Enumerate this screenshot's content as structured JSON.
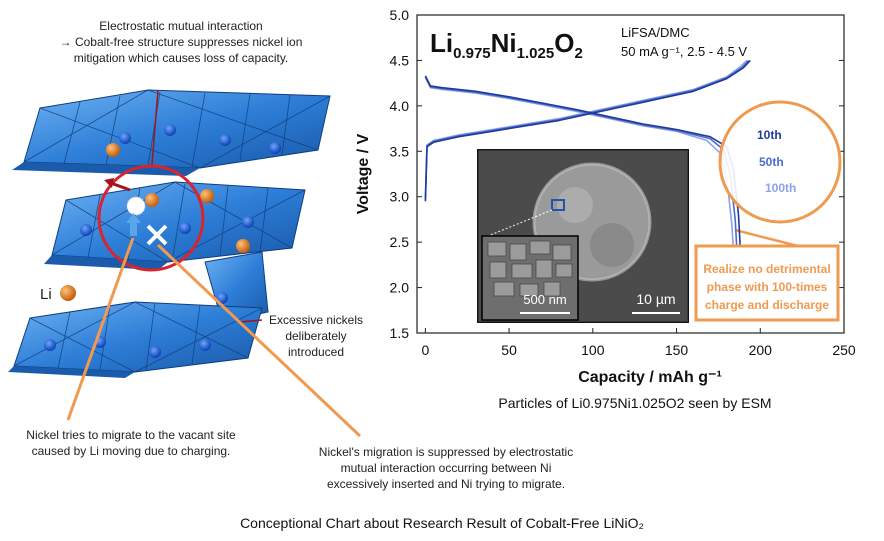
{
  "diagram": {
    "top_annotation": {
      "line1": "Electrostatic mutual interaction",
      "line2": "→ Cobalt-free structure suppresses nickel ion",
      "line3": "mitigation which causes loss of capacity."
    },
    "li_label": "Li",
    "excess_note": {
      "line1": "Excessive nickels",
      "line2": "deliberately",
      "line3": "introduced"
    },
    "migrate_note": {
      "line1": "Nickel tries to migrate to the vacant site",
      "line2": "caused by Li moving due to charging."
    },
    "suppress_note": {
      "line1": "Nickel's migration is suppressed by electrostatic",
      "line2": "mutual interaction occurring between Ni",
      "line3": "excessively inserted and Ni trying to migrate."
    },
    "colors": {
      "octahedra": "#2e7fd8",
      "li_atom": "#e07a1a",
      "red_circle": "#d9232e",
      "orange_line": "#f09a50"
    }
  },
  "chart_data": {
    "type": "line",
    "title_formula": {
      "a": "Li",
      "b": "0.975",
      "c": "Ni",
      "d": "1.025",
      "e": "O",
      "f": "2"
    },
    "conditions_line1": "LiFSA/DMC",
    "conditions_line2": "50 mA g⁻¹, 2.5 - 4.5 V",
    "xlabel": "Capacity   /   mAh g⁻¹",
    "ylabel": "Voltage   /   V",
    "xlim": [
      -5,
      250
    ],
    "ylim": [
      1.5,
      5.0
    ],
    "x_ticks": [
      "0",
      "50",
      "100",
      "150",
      "200",
      "250"
    ],
    "y_ticks": [
      "1.5",
      "2.0",
      "2.5",
      "3.0",
      "3.5",
      "4.0",
      "4.5",
      "5.0"
    ],
    "cycle_labels": [
      {
        "text": "10th",
        "color": "#1f3a9c"
      },
      {
        "text": "50th",
        "color": "#4d6bd0"
      },
      {
        "text": "100th",
        "color": "#8da3e6"
      }
    ],
    "series": [
      {
        "name": "10th",
        "color": "#1f3a9c",
        "charge": [
          [
            0,
            2.95
          ],
          [
            1,
            3.55
          ],
          [
            5,
            3.6
          ],
          [
            20,
            3.66
          ],
          [
            40,
            3.72
          ],
          [
            60,
            3.78
          ],
          [
            80,
            3.84
          ],
          [
            100,
            3.92
          ],
          [
            120,
            4.0
          ],
          [
            140,
            4.08
          ],
          [
            160,
            4.16
          ],
          [
            180,
            4.3
          ],
          [
            190,
            4.42
          ],
          [
            194,
            4.5
          ]
        ],
        "discharge": [
          [
            0,
            4.33
          ],
          [
            3,
            4.22
          ],
          [
            10,
            4.2
          ],
          [
            30,
            4.16
          ],
          [
            50,
            4.1
          ],
          [
            70,
            4.03
          ],
          [
            90,
            3.96
          ],
          [
            110,
            3.88
          ],
          [
            130,
            3.8
          ],
          [
            150,
            3.74
          ],
          [
            170,
            3.66
          ],
          [
            180,
            3.55
          ],
          [
            184,
            3.3
          ],
          [
            187,
            2.8
          ],
          [
            189,
            2.1
          ],
          [
            190,
            1.7
          ]
        ]
      },
      {
        "name": "50th",
        "color": "#4d6bd0",
        "charge": [
          [
            0,
            2.97
          ],
          [
            1,
            3.56
          ],
          [
            5,
            3.61
          ],
          [
            20,
            3.67
          ],
          [
            40,
            3.73
          ],
          [
            60,
            3.79
          ],
          [
            80,
            3.85
          ],
          [
            100,
            3.93
          ],
          [
            120,
            4.01
          ],
          [
            140,
            4.09
          ],
          [
            160,
            4.17
          ],
          [
            180,
            4.31
          ],
          [
            189,
            4.42
          ],
          [
            193,
            4.5
          ]
        ],
        "discharge": [
          [
            0,
            4.32
          ],
          [
            3,
            4.21
          ],
          [
            10,
            4.19
          ],
          [
            30,
            4.15
          ],
          [
            50,
            4.09
          ],
          [
            70,
            4.02
          ],
          [
            90,
            3.95
          ],
          [
            110,
            3.87
          ],
          [
            130,
            3.79
          ],
          [
            150,
            3.73
          ],
          [
            170,
            3.64
          ],
          [
            178,
            3.52
          ],
          [
            182,
            3.25
          ],
          [
            185,
            2.75
          ],
          [
            187,
            2.1
          ],
          [
            188,
            1.7
          ]
        ]
      },
      {
        "name": "100th",
        "color": "#8da3e6",
        "charge": [
          [
            0,
            2.99
          ],
          [
            1,
            3.57
          ],
          [
            5,
            3.62
          ],
          [
            20,
            3.68
          ],
          [
            40,
            3.74
          ],
          [
            60,
            3.8
          ],
          [
            80,
            3.86
          ],
          [
            100,
            3.94
          ],
          [
            120,
            4.02
          ],
          [
            140,
            4.1
          ],
          [
            160,
            4.18
          ],
          [
            180,
            4.32
          ],
          [
            188,
            4.43
          ],
          [
            192,
            4.5
          ]
        ],
        "discharge": [
          [
            0,
            4.31
          ],
          [
            3,
            4.2
          ],
          [
            10,
            4.18
          ],
          [
            30,
            4.14
          ],
          [
            50,
            4.08
          ],
          [
            70,
            4.01
          ],
          [
            90,
            3.94
          ],
          [
            110,
            3.86
          ],
          [
            130,
            3.78
          ],
          [
            150,
            3.72
          ],
          [
            168,
            3.62
          ],
          [
            176,
            3.48
          ],
          [
            180,
            3.2
          ],
          [
            183,
            2.7
          ],
          [
            185,
            2.1
          ],
          [
            186,
            1.7
          ]
        ]
      }
    ],
    "callout": {
      "line1": "Realize no detrimental",
      "line2": "phase with 100-times",
      "line3": "charge and discharge"
    },
    "inset": {
      "scale_large": "10 µm",
      "scale_small": "500 nm"
    }
  },
  "sem_caption": "Particles of Li0.975Ni1.025O2 seen by ESM",
  "main_caption": "Conceptional Chart about Research Result of Cobalt-Free LiNiO₂"
}
